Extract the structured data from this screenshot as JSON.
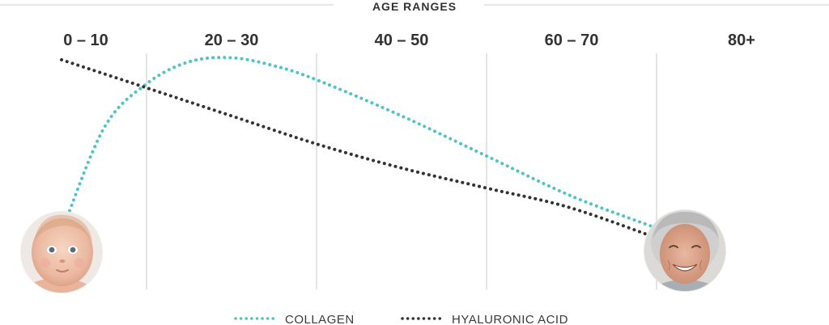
{
  "chart_data": {
    "type": "line",
    "title": "AGE RANGES",
    "categories": [
      "0 – 10",
      "20 – 30",
      "40 – 50",
      "60 – 70",
      "80+"
    ],
    "x_range": [
      0,
      80
    ],
    "y_range": [
      0,
      100
    ],
    "grid": "vertical",
    "legend_position": "bottom",
    "series": [
      {
        "name": "COLLAGEN",
        "color": "#4fc3c7",
        "style": "dotted",
        "points": [
          [
            0,
            10
          ],
          [
            5,
            62
          ],
          [
            10,
            84
          ],
          [
            15,
            95
          ],
          [
            20,
            97
          ],
          [
            25,
            93
          ],
          [
            30,
            86
          ],
          [
            40,
            68
          ],
          [
            50,
            48
          ],
          [
            60,
            28
          ],
          [
            70,
            12
          ],
          [
            72,
            8
          ]
        ]
      },
      {
        "name": "HYALURONIC ACID",
        "color": "#333333",
        "style": "dotted",
        "points": [
          [
            0,
            96
          ],
          [
            10,
            82
          ],
          [
            20,
            68
          ],
          [
            30,
            54
          ],
          [
            40,
            42
          ],
          [
            50,
            32
          ],
          [
            60,
            22
          ],
          [
            72,
            4
          ]
        ]
      }
    ],
    "annotations": [
      {
        "icon": "baby-face-photo",
        "at": "start"
      },
      {
        "icon": "elderly-woman-photo",
        "at": "end"
      }
    ]
  }
}
